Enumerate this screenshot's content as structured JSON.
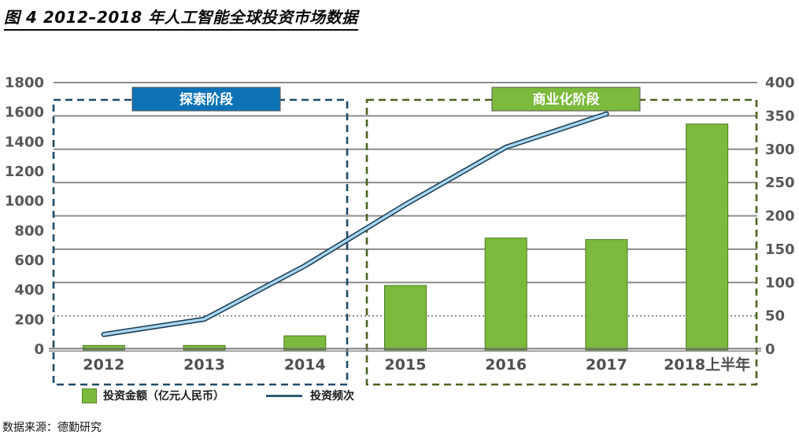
{
  "figure": {
    "title": "图 4 2012–2018 年人工智能全球投资市场数据",
    "source": "数据来源：德勤研究"
  },
  "legend": {
    "items": [
      {
        "label": "投资金额（亿元人民币）",
        "swatch": "square",
        "color": "#7bba3c"
      },
      {
        "label": "投资频次",
        "swatch": "line",
        "color": "#2f5d70"
      }
    ]
  },
  "chart_data": {
    "type": "bar",
    "subtype": "bar+line combo",
    "title": "图 4 2012–2018 年人工智能全球投资市场数据",
    "categories": [
      "2012",
      "2013",
      "2014",
      "2015",
      "2016",
      "2017",
      "2018上半年"
    ],
    "series": [
      {
        "name": "投资金额（亿元人民币）",
        "type": "bar",
        "axis": "left",
        "color": "#7bba3c",
        "border_color": "#4d7a22",
        "values": [
          25,
          25,
          90,
          430,
          750,
          740,
          1520
        ]
      },
      {
        "name": "投资频次",
        "type": "line",
        "axis": "right",
        "color_core": "#a8d7f2",
        "color_outline": "#1c3f54",
        "values": [
          22,
          45,
          125,
          217,
          303,
          353,
          null
        ]
      }
    ],
    "left_axis": {
      "min": 0,
      "max": 1800,
      "step": 200,
      "tick_labels": [
        "1800",
        "1600",
        "1400",
        "1200",
        "1000",
        "800",
        "600",
        "400",
        "200",
        "0"
      ]
    },
    "right_axis": {
      "min": 0,
      "max": 400,
      "step": 50,
      "tick_labels": [
        "400",
        "350",
        "300",
        "250",
        "200",
        "150",
        "100",
        "50",
        "0"
      ]
    },
    "grid": "horizontal gridlines at right-axis steps; the 50 line is dotted",
    "legend_position": "bottom-left",
    "annotations": {
      "phases": [
        {
          "label": "探索阶段",
          "box_fill": "#0d73b6",
          "dash_color": "#1f4a66",
          "covers": [
            "2012",
            "2013",
            "2014"
          ]
        },
        {
          "label": "商业化阶段",
          "box_fill": "#7bba3c",
          "dash_color": "#4a621f",
          "covers": [
            "2015",
            "2016",
            "2017",
            "2018上半年"
          ]
        }
      ]
    }
  }
}
